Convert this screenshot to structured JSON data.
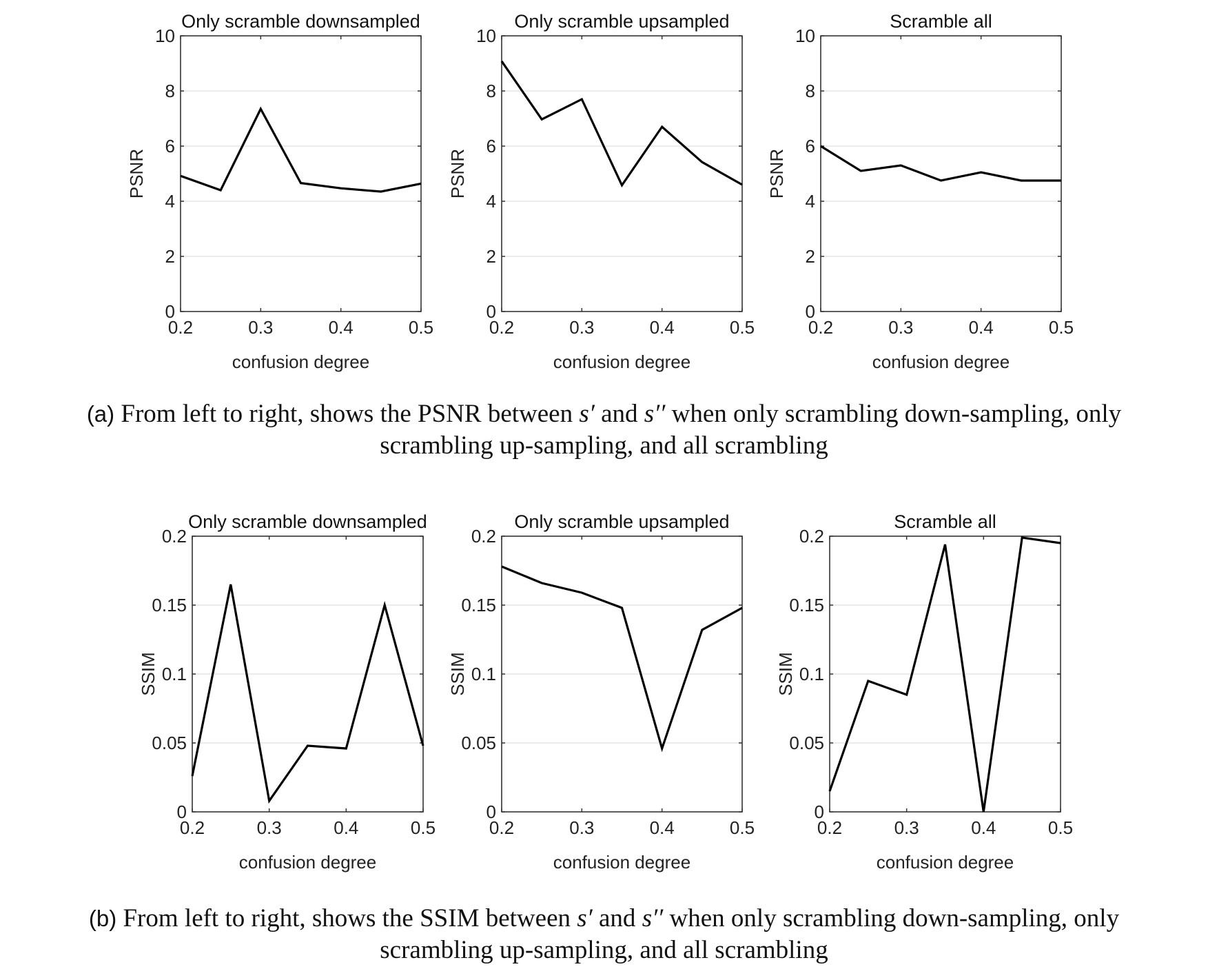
{
  "captions": [
    {
      "tag": "(a)",
      "pre": " From left to right, shows the PSNR between ",
      "sym1": "s′",
      "mid": " and ",
      "sym2": "s′′",
      "post1": " when only scrambling down-sampling, only",
      "line2": "scrambling up-sampling, and all scrambling"
    },
    {
      "tag": "(b)",
      "pre": " From left to right, shows the SSIM between ",
      "sym1": "s′",
      "mid": " and ",
      "sym2": "s′′",
      "post1": " when only scrambling down-sampling, only",
      "line2": "scrambling up-sampling, and all scrambling"
    }
  ],
  "chart_data": [
    {
      "type": "line",
      "title": "Only scramble downsampled",
      "xlabel": "confusion degree",
      "ylabel": "PSNR",
      "xlim": [
        0.2,
        0.5
      ],
      "ylim": [
        0,
        10
      ],
      "xticks": [
        0.2,
        0.3,
        0.4,
        0.5
      ],
      "xtick_labels": [
        "0.2",
        "0.3",
        "0.4",
        "0.5"
      ],
      "yticks": [
        0,
        2,
        4,
        6,
        8,
        10
      ],
      "ytick_labels": [
        "0",
        "2",
        "4",
        "6",
        "8",
        "10"
      ],
      "grid": "horizontal",
      "color": "#000000",
      "x": [
        0.2,
        0.25,
        0.3,
        0.35,
        0.4,
        0.45,
        0.5
      ],
      "y": [
        4.92,
        4.4,
        7.35,
        4.66,
        4.47,
        4.35,
        4.64
      ]
    },
    {
      "type": "line",
      "title": "Only scramble upsampled",
      "xlabel": "confusion degree",
      "ylabel": "PSNR",
      "xlim": [
        0.2,
        0.5
      ],
      "ylim": [
        0,
        10
      ],
      "xticks": [
        0.2,
        0.3,
        0.4,
        0.5
      ],
      "xtick_labels": [
        "0.2",
        "0.3",
        "0.4",
        "0.5"
      ],
      "yticks": [
        0,
        2,
        4,
        6,
        8,
        10
      ],
      "ytick_labels": [
        "0",
        "2",
        "4",
        "6",
        "8",
        "10"
      ],
      "grid": "horizontal",
      "color": "#000000",
      "x": [
        0.2,
        0.25,
        0.3,
        0.35,
        0.4,
        0.45,
        0.5
      ],
      "y": [
        9.08,
        6.97,
        7.7,
        4.58,
        6.7,
        5.42,
        4.6
      ]
    },
    {
      "type": "line",
      "title": "Scramble all",
      "xlabel": "confusion degree",
      "ylabel": "PSNR",
      "xlim": [
        0.2,
        0.5
      ],
      "ylim": [
        0,
        10
      ],
      "xticks": [
        0.2,
        0.3,
        0.4,
        0.5
      ],
      "xtick_labels": [
        "0.2",
        "0.3",
        "0.4",
        "0.5"
      ],
      "yticks": [
        0,
        2,
        4,
        6,
        8,
        10
      ],
      "ytick_labels": [
        "0",
        "2",
        "4",
        "6",
        "8",
        "10"
      ],
      "grid": "horizontal",
      "color": "#000000",
      "x": [
        0.2,
        0.25,
        0.3,
        0.35,
        0.4,
        0.45,
        0.5
      ],
      "y": [
        6.0,
        5.1,
        5.3,
        4.75,
        5.05,
        4.75,
        4.75
      ]
    },
    {
      "type": "line",
      "title": "Only scramble downsampled",
      "xlabel": "confusion degree",
      "ylabel": "SSIM",
      "xlim": [
        0.2,
        0.5
      ],
      "ylim": [
        0,
        0.2
      ],
      "xticks": [
        0.2,
        0.3,
        0.4,
        0.5
      ],
      "xtick_labels": [
        "0.2",
        "0.3",
        "0.4",
        "0.5"
      ],
      "yticks": [
        0,
        0.05,
        0.1,
        0.15,
        0.2
      ],
      "ytick_labels": [
        "0",
        "0.05",
        "0.1",
        "0.15",
        "0.2"
      ],
      "grid": "horizontal",
      "color": "#000000",
      "x": [
        0.2,
        0.25,
        0.3,
        0.35,
        0.4,
        0.45,
        0.5
      ],
      "y": [
        0.026,
        0.165,
        0.008,
        0.048,
        0.046,
        0.15,
        0.048
      ]
    },
    {
      "type": "line",
      "title": "Only scramble upsampled",
      "xlabel": "confusion degree",
      "ylabel": "SSIM",
      "xlim": [
        0.2,
        0.5
      ],
      "ylim": [
        0,
        0.2
      ],
      "xticks": [
        0.2,
        0.3,
        0.4,
        0.5
      ],
      "xtick_labels": [
        "0.2",
        "0.3",
        "0.4",
        "0.5"
      ],
      "yticks": [
        0,
        0.05,
        0.1,
        0.15,
        0.2
      ],
      "ytick_labels": [
        "0",
        "0.05",
        "0.1",
        "0.15",
        "0.2"
      ],
      "grid": "horizontal",
      "color": "#000000",
      "x": [
        0.2,
        0.25,
        0.3,
        0.35,
        0.4,
        0.45,
        0.5
      ],
      "y": [
        0.178,
        0.166,
        0.159,
        0.148,
        0.046,
        0.132,
        0.148
      ]
    },
    {
      "type": "line",
      "title": "Scramble all",
      "xlabel": "confusion degree",
      "ylabel": "SSIM",
      "xlim": [
        0.2,
        0.5
      ],
      "ylim": [
        0,
        0.2
      ],
      "xticks": [
        0.2,
        0.3,
        0.4,
        0.5
      ],
      "xtick_labels": [
        "0.2",
        "0.3",
        "0.4",
        "0.5"
      ],
      "yticks": [
        0,
        0.05,
        0.1,
        0.15,
        0.2
      ],
      "ytick_labels": [
        "0",
        "0.05",
        "0.1",
        "0.15",
        "0.2"
      ],
      "grid": "horizontal",
      "color": "#000000",
      "x": [
        0.2,
        0.25,
        0.3,
        0.35,
        0.4,
        0.45,
        0.5
      ],
      "y": [
        0.015,
        0.095,
        0.085,
        0.194,
        0.0,
        0.199,
        0.195
      ]
    }
  ]
}
